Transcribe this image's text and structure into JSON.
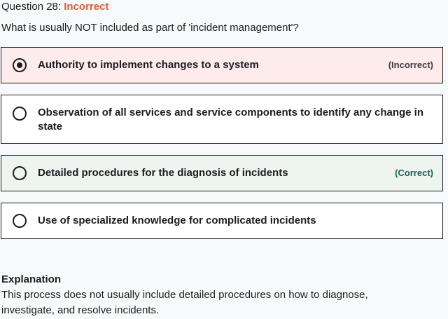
{
  "question": {
    "number_label": "Question 28:",
    "status": "Incorrect",
    "text": "What is usually NOT included as part of 'incident management'?"
  },
  "answers": [
    {
      "text": "Authority to implement changes to a system",
      "selected": true,
      "result_tag": "(Incorrect)"
    },
    {
      "text": "Observation of all services and service components to identify any change in state",
      "selected": false,
      "result_tag": ""
    },
    {
      "text": "Detailed procedures for the diagnosis of incidents",
      "selected": false,
      "result_tag": "(Correct)"
    },
    {
      "text": "Use of specialized knowledge for complicated incidents",
      "selected": false,
      "result_tag": ""
    }
  ],
  "explanation": {
    "title": "Explanation",
    "body": "This process does not usually include detailed procedures on how to diagnose, investigate, and resolve incidents."
  },
  "colors": {
    "incorrect_status": "#e05a3a",
    "incorrect_bg": "#fdeceb",
    "correct_bg": "#eef5f1",
    "correct_tag": "#1e6055"
  }
}
